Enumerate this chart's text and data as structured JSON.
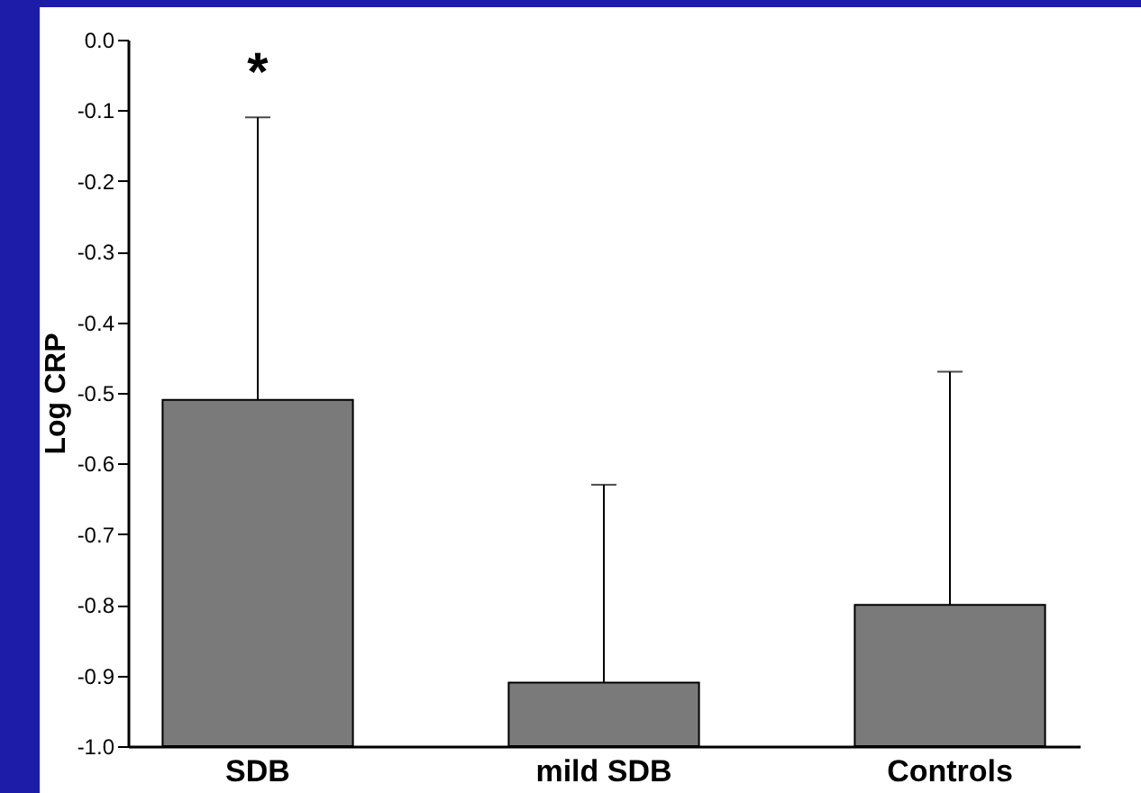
{
  "chart_data": {
    "type": "bar",
    "ylabel": "Log CRP",
    "categories": [
      "SDB",
      "mild SDB",
      "Controls"
    ],
    "values": [
      0.49,
      0.09,
      0.2
    ],
    "base": [
      -1.0,
      -1.0,
      -1.0
    ],
    "color": "#7a7a7a",
    "errors": [
      [
        -0.51,
        -0.11
      ],
      [
        -0.91,
        -0.63
      ],
      [
        -0.8,
        -0.47
      ]
    ],
    "ylim": [
      -1.0,
      0.0
    ],
    "yticks": [
      {
        "value": -1.0,
        "label": "-1.0"
      },
      -0.9,
      -0.8,
      -0.7,
      -0.6,
      -0.5,
      -0.4,
      -0.3,
      -0.2,
      -0.1,
      {
        "value": 0,
        "label": "0.0"
      }
    ],
    "annotations": [
      "*"
    ],
    "grid": false
  }
}
